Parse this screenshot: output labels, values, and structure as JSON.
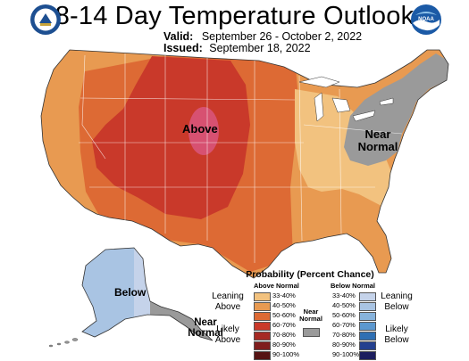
{
  "title": "8-14 Day Temperature Outlook",
  "valid_label": "Valid:",
  "valid_dates": "September 26 - October 2, 2022",
  "issued_label": "Issued:",
  "issued_date": "September 18, 2022",
  "logos": {
    "left": "doc-seal-icon",
    "right": "noaa-logo-icon"
  },
  "map_labels": {
    "above": "Above",
    "near": "Near Normal",
    "below": "Below",
    "near_ak": "Near Normal"
  },
  "legend": {
    "title": "Probability (Percent Chance)",
    "above_header": "Above Normal",
    "below_header": "Below Normal",
    "near_header": "Near Normal",
    "leaning_above": "Leaning Above",
    "likely_above": "Likely Above",
    "leaning_below": "Leaning Below",
    "likely_below": "Likely Below",
    "ranges": [
      "33-40%",
      "40-50%",
      "50-60%",
      "60-70%",
      "70-80%",
      "80-90%",
      "90-100%"
    ],
    "above_colors": [
      "#f2c27f",
      "#e89a51",
      "#dd6a34",
      "#c9392a",
      "#a52a24",
      "#7f1d1d",
      "#551313"
    ],
    "below_colors": [
      "#c5d3ea",
      "#a9c4e3",
      "#87b3dc",
      "#5c98cf",
      "#2f6fb3",
      "#24408f",
      "#1c1d5e"
    ],
    "near_color": "#9a9a9a"
  }
}
